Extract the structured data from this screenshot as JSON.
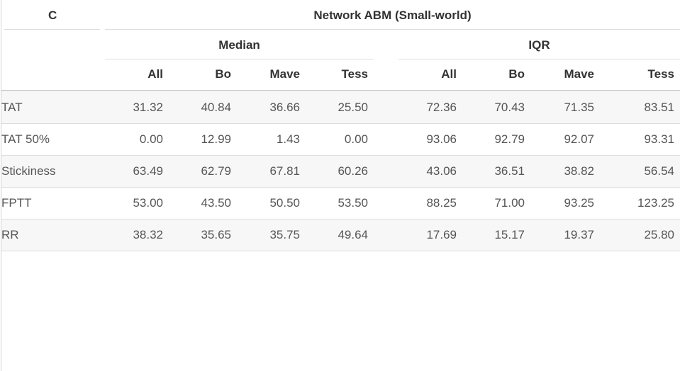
{
  "table": {
    "panel_label": "C",
    "title": "Network ABM (Small-world)",
    "group_headers": [
      "Median",
      "IQR"
    ],
    "columns": [
      "All",
      "Bo",
      "Mave",
      "Tess",
      "All",
      "Bo",
      "Mave",
      "Tess"
    ],
    "rows": [
      {
        "label": "TAT",
        "values": [
          "31.32",
          "40.84",
          "36.66",
          "25.50",
          "72.36",
          "70.43",
          "71.35",
          "83.51"
        ]
      },
      {
        "label": "TAT 50%",
        "values": [
          "0.00",
          "12.99",
          "1.43",
          "0.00",
          "93.06",
          "92.79",
          "92.07",
          "93.31"
        ]
      },
      {
        "label": "Stickiness",
        "values": [
          "63.49",
          "62.79",
          "67.81",
          "60.26",
          "43.06",
          "36.51",
          "38.82",
          "56.54"
        ]
      },
      {
        "label": "FPTT",
        "values": [
          "53.00",
          "43.50",
          "50.50",
          "53.50",
          "88.25",
          "71.00",
          "93.25",
          "123.25"
        ]
      },
      {
        "label": "RR",
        "values": [
          "38.32",
          "35.65",
          "35.75",
          "49.64",
          "17.69",
          "15.17",
          "19.37",
          "25.80"
        ]
      }
    ]
  }
}
